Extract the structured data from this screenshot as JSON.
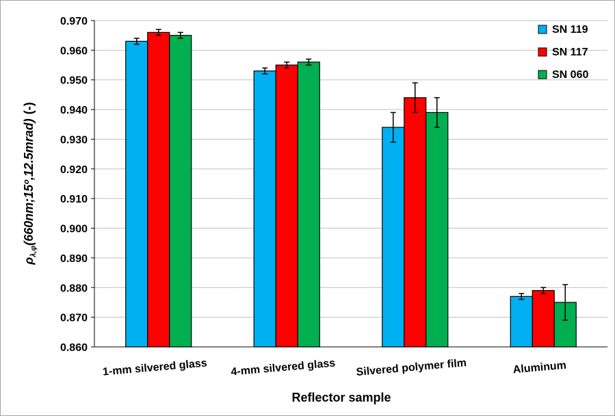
{
  "chart_data": {
    "type": "bar",
    "categories": [
      "1-mm silvered glass",
      "4-mm silvered glass",
      "Silvered polymer film",
      "Aluminum"
    ],
    "series": [
      {
        "name": "SN 119",
        "color": "#00b0f0",
        "values": [
          0.963,
          0.953,
          0.934,
          0.877
        ],
        "errors": [
          0.001,
          0.001,
          0.005,
          0.001
        ]
      },
      {
        "name": "SN 117",
        "color": "#ff0000",
        "values": [
          0.966,
          0.955,
          0.944,
          0.879
        ],
        "errors": [
          0.001,
          0.001,
          0.005,
          0.001
        ]
      },
      {
        "name": "SN 060",
        "color": "#00b050",
        "values": [
          0.965,
          0.956,
          0.939,
          0.875
        ],
        "errors": [
          0.001,
          0.001,
          0.005,
          0.006
        ]
      }
    ],
    "ylabel_symbol": "ρ",
    "ylabel_subscript": "λ,φ",
    "ylabel_rest": "(660nm;15º,12.5mrad)",
    "ylabel_unit": "(-)",
    "xlabel": "Reflector sample",
    "ylim": [
      0.86,
      0.97
    ],
    "yticks": [
      "0.860",
      "0.870",
      "0.880",
      "0.890",
      "0.900",
      "0.910",
      "0.920",
      "0.930",
      "0.940",
      "0.950",
      "0.960",
      "0.970"
    ],
    "grid": true,
    "legend_position": "top-right"
  }
}
